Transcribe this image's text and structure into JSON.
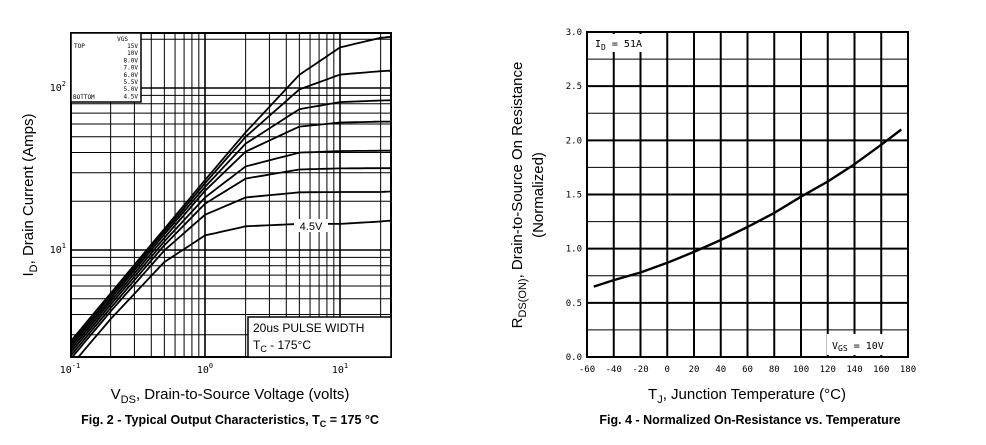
{
  "chart_data": [
    {
      "type": "line",
      "title": "",
      "caption": {
        "pre": "Fig. 2 - Typical Output Characteristics, T",
        "sub": "C",
        "post": " = 175 °C"
      },
      "xlabel": {
        "pre": "V",
        "sub": "DS",
        "post": ", Drain-to-Source Voltage (volts)"
      },
      "ylabel": {
        "pre": "I",
        "sub": "D",
        "post": ", Drain Current (Amps)"
      },
      "x_scale": "log",
      "y_scale": "log",
      "xlim": [
        0.1,
        24
      ],
      "ylim": [
        2.2,
        220
      ],
      "grid": true,
      "x_ticks": [
        {
          "base": "10",
          "exp": "-1",
          "v": 0.1
        },
        {
          "base": "10",
          "exp": "0",
          "v": 1
        },
        {
          "base": "10",
          "exp": "1",
          "v": 10
        }
      ],
      "y_ticks": [
        {
          "base": "10",
          "exp": "1",
          "v": 10
        },
        {
          "base": "10",
          "exp": "2",
          "v": 100
        }
      ],
      "legend": {
        "placement": "top-left",
        "header": "VGS",
        "top_label": "TOP",
        "bottom_label": "BOTTOM",
        "entries": [
          "15V",
          "10V",
          "8.0V",
          "7.0V",
          "6.0V",
          "5.5V",
          "5.0V",
          "4.5V"
        ]
      },
      "annotations": {
        "curve_label": "4.5V",
        "box_line1": "20us PULSE WIDTH",
        "box_line2_pre": "T",
        "box_line2_sub": "C",
        "box_line2_post": " - 175°C"
      },
      "x": [
        0.1,
        0.2,
        0.5,
        1,
        2,
        5,
        10,
        20,
        24
      ],
      "series": [
        {
          "name": "15V",
          "values": [
            2.7,
            5.4,
            13.5,
            27,
            53.3,
            120.6,
            178,
            204,
            207
          ]
        },
        {
          "name": "10V",
          "values": [
            2.6,
            5.2,
            13,
            25.8,
            50,
            98,
            121,
            127,
            128
          ]
        },
        {
          "name": "8.0V",
          "values": [
            2.5,
            5,
            12.5,
            24.5,
            45.4,
            74,
            81.8,
            83.7,
            84
          ]
        },
        {
          "name": "7.0V",
          "values": [
            2.4,
            4.8,
            11.9,
            23.2,
            40.5,
            57.8,
            61.2,
            62,
            62
          ]
        },
        {
          "name": "6.0V",
          "values": [
            2.3,
            4.6,
            11.3,
            21.1,
            32.8,
            39.9,
            40.8,
            41,
            41
          ]
        },
        {
          "name": "5.5V",
          "values": [
            2.2,
            4.39,
            10.7,
            19.3,
            27.6,
            31.4,
            31.9,
            32,
            32
          ]
        },
        {
          "name": "5.0V",
          "values": [
            2.1,
            4.18,
            9.95,
            16.5,
            21.1,
            22.7,
            22.8,
            22.8,
            23
          ]
        },
        {
          "name": "4.5V",
          "values": [
            1.9,
            3.75,
            8.43,
            12.3,
            14.0,
            14.5,
            14.5,
            15,
            15.2
          ]
        }
      ]
    },
    {
      "type": "line",
      "title": "",
      "caption": "Fig. 4 - Normalized On-Resistance vs. Temperature",
      "xlabel": {
        "pre": "T",
        "sub": "J",
        "post": ", Junction Temperature (°C)"
      },
      "ylabel": {
        "pre": "R",
        "sub": "DS(ON)",
        "post": ", Drain-to-Source On Resistance",
        "line2": "(Normalized)"
      },
      "xlim": [
        -60,
        180
      ],
      "ylim": [
        0,
        3.0
      ],
      "grid": true,
      "x_ticks": [
        "-60",
        "-40",
        "-20",
        "0",
        "20",
        "40",
        "60",
        "80",
        "100",
        "120",
        "140",
        "160",
        "180"
      ],
      "y_ticks": [
        "0.0",
        "0.5",
        "1.0",
        "1.5",
        "2.0",
        "2.5",
        "3.0"
      ],
      "annotations": {
        "id_pre": "I",
        "id_sub": "D",
        "id_post": " = 51A",
        "vgs_pre": "V",
        "vgs_sub": "GS",
        "vgs_post": " = 10V"
      },
      "x": [
        -55,
        -40,
        -20,
        0,
        20,
        40,
        60,
        80,
        100,
        120,
        140,
        160,
        175
      ],
      "values": [
        0.65,
        0.71,
        0.78,
        0.87,
        0.97,
        1.08,
        1.2,
        1.33,
        1.48,
        1.62,
        1.78,
        1.96,
        2.1
      ]
    }
  ]
}
